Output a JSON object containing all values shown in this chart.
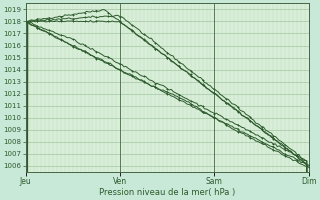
{
  "bg_color": "#c8e8d8",
  "plot_bg_color": "#d8eed8",
  "grid_color_major": "#99bb99",
  "grid_color_minor": "#bbddbb",
  "line_color": "#2d5a2d",
  "line_color2": "#3a7a3a",
  "ylim": [
    1005.5,
    1019.5
  ],
  "yticks": [
    1006,
    1007,
    1008,
    1009,
    1010,
    1011,
    1012,
    1013,
    1014,
    1015,
    1016,
    1017,
    1018,
    1019
  ],
  "xlabel": "Pression niveau de la mer( hPa )",
  "xtick_labels": [
    "Jeu",
    "Ven",
    "Sam",
    "Dim"
  ],
  "day_ticks": [
    0,
    24,
    48,
    72
  ],
  "n_points": 145
}
